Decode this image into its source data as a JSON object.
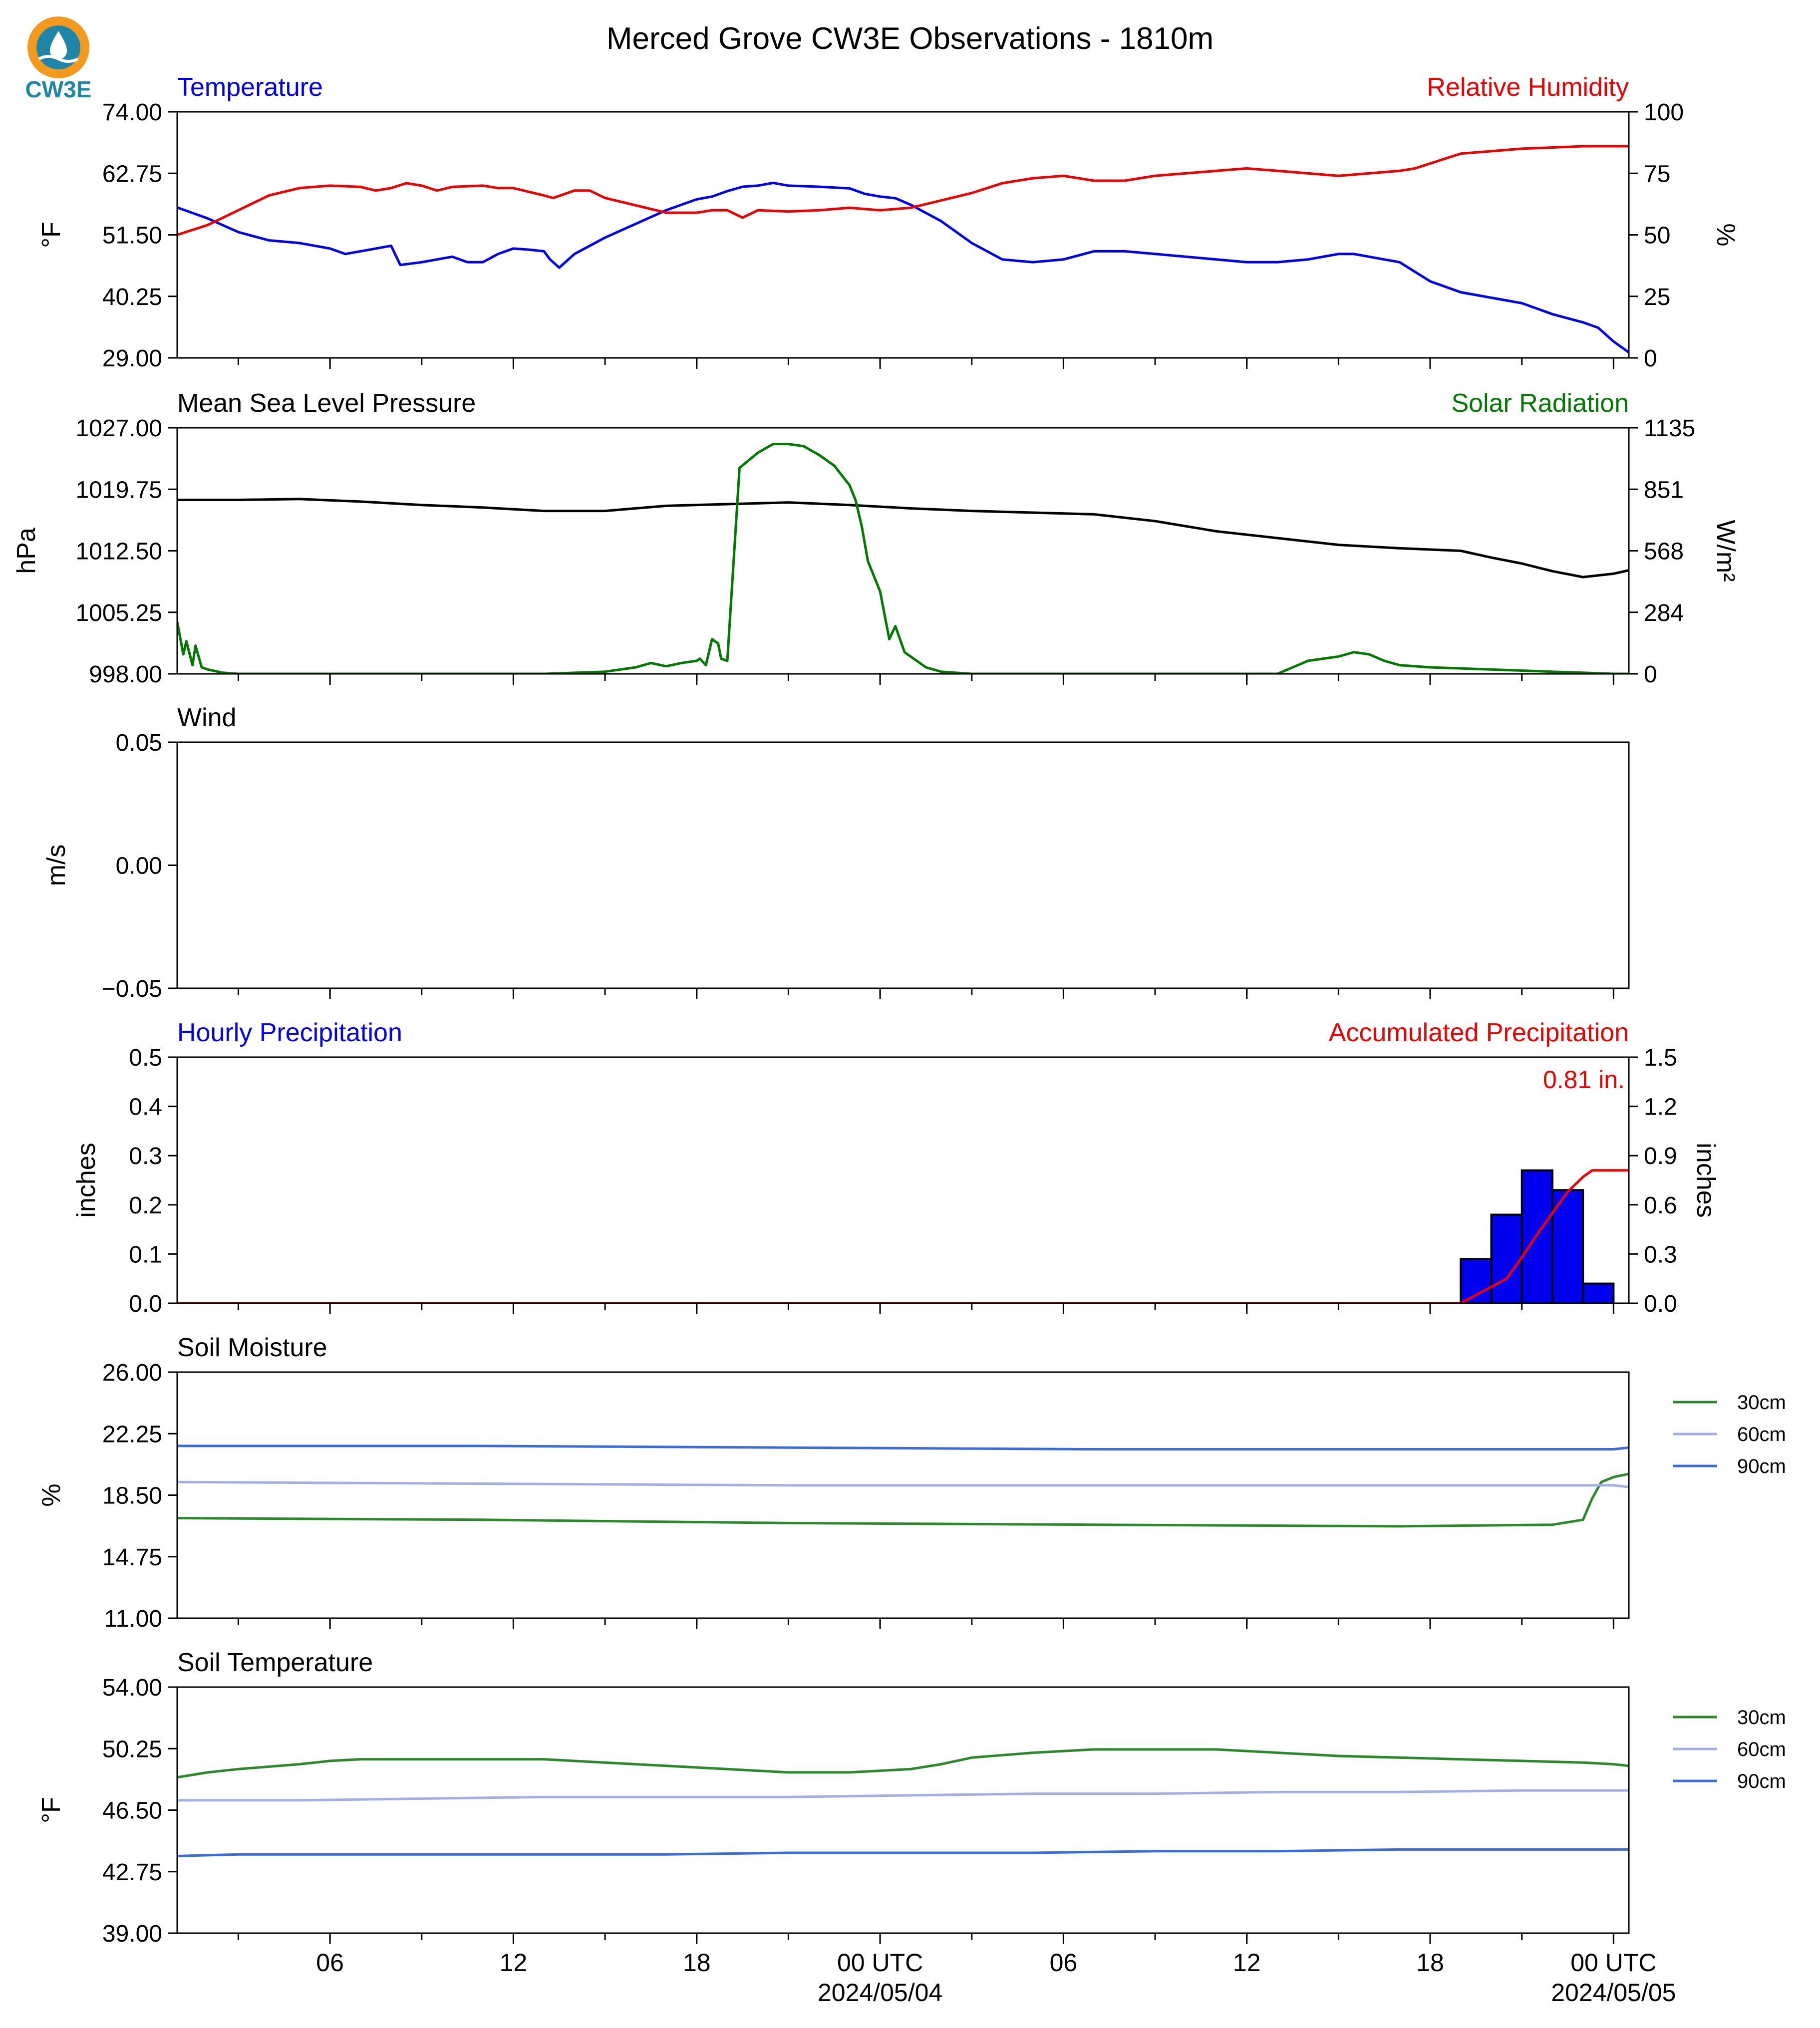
{
  "title": "Merced Grove CW3E Observations - 1810m",
  "logo": {
    "text": "CW3E",
    "colors": {
      "ring": "#f39a1e",
      "water": "#1f86a8",
      "text": "#1f86a8"
    }
  },
  "time_axis": {
    "hours_total": 47.5,
    "ticks": [
      {
        "hour": 5,
        "label": "06"
      },
      {
        "hour": 11,
        "label": "12"
      },
      {
        "hour": 17,
        "label": "18"
      },
      {
        "hour": 23,
        "label": "00 UTC",
        "sublabel": "2024/05/04"
      },
      {
        "hour": 29,
        "label": "06"
      },
      {
        "hour": 35,
        "label": "12"
      },
      {
        "hour": 41,
        "label": "18"
      },
      {
        "hour": 47,
        "label": "00 UTC",
        "sublabel": "2024/05/05"
      }
    ]
  },
  "legend": {
    "labels": [
      "30cm",
      "60cm",
      "90cm"
    ],
    "colors": [
      "#2a8a2a",
      "#a3aee6",
      "#3a6be0"
    ]
  },
  "chart_data": [
    {
      "type": "line",
      "left_title": "Temperature",
      "right_title": "Relative Humidity",
      "ylabel": "°F",
      "ylabel_right": "%",
      "ylim": [
        29,
        74
      ],
      "yticks": [
        "74.00",
        "62.75",
        "51.50",
        "40.25",
        "29.00"
      ],
      "ylim_right": [
        0,
        100
      ],
      "yticks_right": [
        "100",
        "75",
        "50",
        "25",
        "0"
      ],
      "series": [
        {
          "axis": "left",
          "color": "#0000ee",
          "x": [
            0,
            1,
            2,
            3,
            4,
            5,
            5.5,
            6,
            6.5,
            7,
            7.3,
            8,
            8.5,
            9,
            9.5,
            10,
            10.5,
            11,
            11.5,
            12,
            12.2,
            12.5,
            13,
            14,
            15,
            16,
            16.5,
            17,
            17.5,
            18,
            18.5,
            19,
            19.5,
            20,
            21,
            22,
            22.5,
            23,
            23.5,
            24,
            25,
            26,
            27,
            28,
            29,
            30,
            31,
            32,
            33,
            34,
            35,
            36,
            37,
            38,
            38.5,
            39,
            39.5,
            40,
            41,
            42,
            43,
            44,
            45,
            46,
            46.5,
            47,
            47.5
          ],
          "y": [
            56.5,
            54.5,
            52,
            50.5,
            50,
            49,
            48,
            48.5,
            49,
            49.5,
            46,
            46.5,
            47,
            47.5,
            46.5,
            46.5,
            48,
            49,
            48.8,
            48.5,
            47,
            45.5,
            48,
            51,
            53.5,
            56,
            57,
            58,
            58.5,
            59.5,
            60.3,
            60.5,
            61,
            60.5,
            60.3,
            60,
            59,
            58.5,
            58.2,
            57,
            54,
            50,
            47,
            46.5,
            47,
            48.5,
            48.5,
            48,
            47.5,
            47,
            46.5,
            46.5,
            47,
            48,
            48,
            47.5,
            47,
            46.5,
            43,
            41,
            40,
            39,
            37,
            35.5,
            34.5,
            32,
            30
          ]
        },
        {
          "axis": "right",
          "color": "#ee0000",
          "x": [
            0,
            1,
            2,
            3,
            4,
            5,
            6,
            6.5,
            7,
            7.5,
            8,
            8.5,
            9,
            10,
            10.5,
            11,
            12,
            12.3,
            13,
            13.5,
            14,
            15,
            16,
            17,
            17.5,
            18,
            18.5,
            19,
            20,
            21,
            22,
            23,
            24,
            25,
            26,
            27,
            28,
            29,
            30,
            31,
            32,
            33,
            34,
            35,
            36,
            37,
            38,
            39,
            40,
            40.5,
            41,
            42,
            43,
            44,
            45,
            46,
            47,
            47.5
          ],
          "y": [
            50,
            54,
            60,
            66,
            69,
            70,
            69.5,
            68,
            69,
            71,
            70,
            68,
            69.5,
            70,
            69,
            69,
            66,
            65,
            68,
            68,
            65,
            62,
            59,
            59,
            60,
            60,
            57,
            60,
            59.5,
            60,
            61,
            60,
            61,
            64,
            67,
            71,
            73,
            74,
            72,
            72,
            74,
            75,
            76,
            77,
            76,
            75,
            74,
            75,
            76,
            77,
            79,
            83,
            84,
            85,
            85.5,
            86,
            86,
            86
          ]
        }
      ]
    },
    {
      "type": "line",
      "left_title": "Mean Sea Level Pressure",
      "right_title": "Solar Radiation",
      "ylabel": "hPa",
      "ylabel_right": "W/m²",
      "ylim": [
        998,
        1027
      ],
      "yticks": [
        "1027.00",
        "1019.75",
        "1012.50",
        "1005.25",
        "998.00"
      ],
      "ylim_right": [
        0,
        1135
      ],
      "yticks_right": [
        "1135",
        "851",
        "568",
        "284",
        "0"
      ],
      "series": [
        {
          "axis": "left",
          "color": "#000000",
          "x": [
            0,
            2,
            4,
            6,
            8,
            10,
            12,
            14,
            16,
            18,
            20,
            22,
            24,
            26,
            28,
            30,
            32,
            34,
            36,
            38,
            40,
            42,
            43,
            44,
            45,
            46,
            47,
            47.5
          ],
          "y": [
            1018.5,
            1018.5,
            1018.6,
            1018.3,
            1017.9,
            1017.6,
            1017.2,
            1017.2,
            1017.8,
            1018.0,
            1018.2,
            1017.9,
            1017.5,
            1017.2,
            1017.0,
            1016.8,
            1016.0,
            1014.8,
            1014.0,
            1013.2,
            1012.8,
            1012.5,
            1011.7,
            1011.0,
            1010.1,
            1009.4,
            1009.8,
            1010.2
          ]
        },
        {
          "axis": "right",
          "color": "#007a00",
          "x": [
            0,
            0.2,
            0.3,
            0.5,
            0.6,
            0.8,
            1,
            1.5,
            2,
            4,
            8,
            12,
            14,
            15,
            15.5,
            16,
            16.5,
            17,
            17.1,
            17.3,
            17.5,
            17.7,
            17.8,
            18,
            18.4,
            19,
            19.5,
            20,
            20.5,
            21,
            21.5,
            22,
            22.2,
            22.4,
            22.6,
            23,
            23.3,
            23.5,
            23.8,
            24,
            24.5,
            25,
            26,
            28,
            30,
            32,
            34,
            36,
            36.5,
            37,
            37.5,
            38,
            38.5,
            39,
            39.5,
            40,
            41,
            42,
            44,
            45,
            46,
            47,
            47.5
          ],
          "y": [
            240,
            90,
            150,
            40,
            130,
            30,
            20,
            5,
            0,
            0,
            0,
            0,
            10,
            30,
            50,
            35,
            50,
            60,
            70,
            40,
            160,
            140,
            70,
            60,
            950,
            1020,
            1060,
            1060,
            1050,
            1010,
            960,
            870,
            800,
            680,
            520,
            380,
            160,
            220,
            100,
            80,
            30,
            10,
            0,
            0,
            0,
            0,
            0,
            0,
            30,
            60,
            70,
            80,
            100,
            90,
            60,
            40,
            30,
            25,
            15,
            10,
            5,
            0,
            0
          ]
        }
      ]
    },
    {
      "type": "line",
      "left_title": "Wind",
      "ylabel": "m/s",
      "ylim": [
        -0.055,
        0.055
      ],
      "yticks": [
        "0.05",
        "0.00",
        "−0.05"
      ],
      "series": []
    },
    {
      "type": "bar",
      "left_title": "Hourly Precipitation",
      "right_title": "Accumulated Precipitation",
      "annotation": "0.81 in.",
      "ylabel": "inches",
      "ylabel_right": "inches",
      "ylim": [
        0,
        0.5
      ],
      "yticks": [
        "0.5",
        "0.4",
        "0.3",
        "0.2",
        "0.1",
        "0.0"
      ],
      "ylim_right": [
        0,
        1.5
      ],
      "yticks_right": [
        "1.5",
        "1.2",
        "0.9",
        "0.6",
        "0.3",
        "0.0"
      ],
      "bars": {
        "color": "#0000ee",
        "x": [
          42,
          43,
          44,
          45,
          46
        ],
        "values": [
          0.09,
          0.18,
          0.27,
          0.23,
          0.04
        ]
      },
      "series": [
        {
          "axis": "right",
          "color": "#ee0000",
          "x": [
            0,
            42,
            42.5,
            43,
            43.5,
            44,
            44.5,
            45,
            45.5,
            46,
            46.3,
            47,
            47.5
          ],
          "y": [
            0,
            0,
            0.05,
            0.1,
            0.15,
            0.28,
            0.42,
            0.55,
            0.68,
            0.77,
            0.81,
            0.81,
            0.81
          ]
        }
      ]
    },
    {
      "type": "line",
      "left_title": "Soil Moisture",
      "ylabel": "%",
      "ylim": [
        11,
        26
      ],
      "yticks": [
        "26.00",
        "22.25",
        "18.50",
        "14.75",
        "11.00"
      ],
      "legend": true,
      "series": [
        {
          "name": "30cm",
          "color": "#2a8a2a",
          "x": [
            0,
            10,
            20,
            30,
            40,
            45,
            46,
            46.3,
            46.6,
            47,
            47.5
          ],
          "y": [
            17.1,
            17.0,
            16.8,
            16.7,
            16.6,
            16.7,
            17.0,
            18.3,
            19.3,
            19.6,
            19.8
          ]
        },
        {
          "name": "60cm",
          "color": "#a3aee6",
          "x": [
            0,
            10,
            20,
            30,
            40,
            47,
            47.5
          ],
          "y": [
            19.3,
            19.2,
            19.1,
            19.1,
            19.1,
            19.1,
            19.0
          ]
        },
        {
          "name": "90cm",
          "color": "#3a6be0",
          "x": [
            0,
            10,
            20,
            30,
            40,
            47,
            47.5
          ],
          "y": [
            21.5,
            21.5,
            21.4,
            21.3,
            21.3,
            21.3,
            21.4
          ]
        }
      ]
    },
    {
      "type": "line",
      "left_title": "Soil Temperature",
      "ylabel": "°F",
      "ylim": [
        39,
        54
      ],
      "yticks": [
        "54.00",
        "50.25",
        "46.50",
        "42.75",
        "39.00"
      ],
      "legend": true,
      "series": [
        {
          "name": "30cm",
          "color": "#2a8a2a",
          "x": [
            0,
            1,
            2,
            4,
            5,
            6,
            8,
            10,
            12,
            14,
            16,
            18,
            20,
            22,
            24,
            25,
            26,
            28,
            30,
            32,
            34,
            36,
            38,
            40,
            42,
            44,
            46,
            47,
            47.5
          ],
          "y": [
            48.5,
            48.8,
            49.0,
            49.3,
            49.5,
            49.6,
            49.6,
            49.6,
            49.6,
            49.4,
            49.2,
            49.0,
            48.8,
            48.8,
            49.0,
            49.3,
            49.7,
            50.0,
            50.2,
            50.2,
            50.2,
            50.0,
            49.8,
            49.7,
            49.6,
            49.5,
            49.4,
            49.3,
            49.2
          ]
        },
        {
          "name": "60cm",
          "color": "#a3aee6",
          "x": [
            0,
            4,
            8,
            12,
            16,
            20,
            24,
            28,
            32,
            36,
            40,
            44,
            47,
            47.5
          ],
          "y": [
            47.1,
            47.1,
            47.2,
            47.3,
            47.3,
            47.3,
            47.4,
            47.5,
            47.5,
            47.6,
            47.6,
            47.7,
            47.7,
            47.7
          ]
        },
        {
          "name": "90cm",
          "color": "#3a6be0",
          "x": [
            0,
            2,
            4,
            8,
            12,
            16,
            20,
            24,
            28,
            32,
            36,
            40,
            44,
            47,
            47.5
          ],
          "y": [
            43.7,
            43.8,
            43.8,
            43.8,
            43.8,
            43.8,
            43.9,
            43.9,
            43.9,
            44.0,
            44.0,
            44.1,
            44.1,
            44.1,
            44.1
          ]
        }
      ]
    }
  ]
}
